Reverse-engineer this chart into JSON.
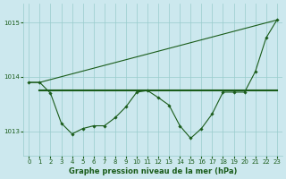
{
  "background_color": "#cce8ee",
  "plot_bg_color": "#cce8ee",
  "grid_color": "#99cccc",
  "xlabel": "Graphe pression niveau de la mer (hPa)",
  "ylim": [
    1012.55,
    1015.35
  ],
  "xlim": [
    -0.5,
    23.5
  ],
  "yticks": [
    1013,
    1014,
    1015
  ],
  "xticks": [
    0,
    1,
    2,
    3,
    4,
    5,
    6,
    7,
    8,
    9,
    10,
    11,
    12,
    13,
    14,
    15,
    16,
    17,
    18,
    19,
    20,
    21,
    22,
    23
  ],
  "line_color": "#1a5c1a",
  "marker": "D",
  "markersize": 1.8,
  "series1_x": [
    0,
    1,
    2,
    3,
    4,
    5,
    6,
    7,
    8,
    9,
    10,
    11,
    12,
    13,
    14,
    15,
    16,
    17,
    18,
    19,
    20,
    21,
    22,
    23
  ],
  "series1_y": [
    1013.9,
    1013.9,
    1013.7,
    1013.15,
    1012.95,
    1013.05,
    1013.1,
    1013.1,
    1013.25,
    1013.45,
    1013.72,
    1013.75,
    1013.62,
    1013.48,
    1013.1,
    1012.87,
    1013.05,
    1013.32,
    1013.72,
    1013.72,
    1013.72,
    1014.1,
    1014.72,
    1015.05
  ],
  "series2_x": [
    1,
    23
  ],
  "series2_y": [
    1013.75,
    1013.75
  ],
  "series3_x": [
    0,
    1,
    23
  ],
  "series3_y": [
    1013.9,
    1013.9,
    1015.05
  ],
  "tick_fontsize": 5.0,
  "xlabel_fontsize": 6.0,
  "xlabel_fontweight": "bold"
}
